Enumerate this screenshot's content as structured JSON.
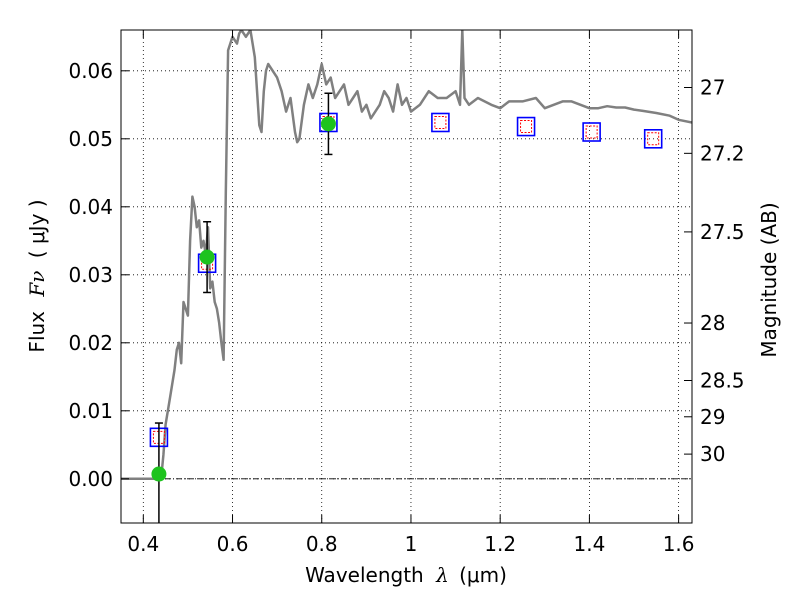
{
  "chart_data": {
    "type": "scatter",
    "title": "",
    "xlabel": {
      "prefix": "Wavelength",
      "symbol": "λ",
      "unit": "(μm)"
    },
    "ylabel": {
      "prefix": "Flux",
      "symbol": "Fν",
      "unit": "( μJy )"
    },
    "y2label": "Magnitude (AB)",
    "xlim": [
      0.35,
      1.63
    ],
    "ylim": [
      -0.0065,
      0.066
    ],
    "xticks": [
      {
        "value": 0.4,
        "label": "0.4"
      },
      {
        "value": 0.6,
        "label": "0.6"
      },
      {
        "value": 0.8,
        "label": "0.8"
      },
      {
        "value": 1.0,
        "label": "1"
      },
      {
        "value": 1.2,
        "label": "1.2"
      },
      {
        "value": 1.4,
        "label": "1.4"
      },
      {
        "value": 1.6,
        "label": "1.6"
      }
    ],
    "yticks": [
      {
        "value": 0.0,
        "label": "0.00"
      },
      {
        "value": 0.01,
        "label": "0.01"
      },
      {
        "value": 0.02,
        "label": "0.02"
      },
      {
        "value": 0.03,
        "label": "0.03"
      },
      {
        "value": 0.04,
        "label": "0.04"
      },
      {
        "value": 0.05,
        "label": "0.05"
      },
      {
        "value": 0.06,
        "label": "0.06"
      }
    ],
    "y2ticks": [
      {
        "value": 27.0,
        "label": "27"
      },
      {
        "value": 27.2,
        "label": "27.2"
      },
      {
        "value": 27.5,
        "label": "27.5"
      },
      {
        "value": 28.0,
        "label": "28"
      },
      {
        "value": 28.5,
        "label": "28.5"
      },
      {
        "value": 29.0,
        "label": "29"
      },
      {
        "value": 30.0,
        "label": "30"
      }
    ],
    "grid": true,
    "zero_line": true,
    "colors": {
      "model": "#808080",
      "observed": "#1ec31e",
      "model_band": "#0000ff",
      "model_band_inner": "#ff0000",
      "errorbar": "#000000"
    },
    "model_spectrum": {
      "x": [
        0.35,
        0.43,
        0.44,
        0.445,
        0.45,
        0.46,
        0.47,
        0.475,
        0.48,
        0.485,
        0.49,
        0.5,
        0.505,
        0.51,
        0.515,
        0.52,
        0.525,
        0.53,
        0.535,
        0.54,
        0.545,
        0.55,
        0.555,
        0.56,
        0.565,
        0.57,
        0.575,
        0.58,
        0.585,
        0.59,
        0.6,
        0.61,
        0.615,
        0.62,
        0.63,
        0.64,
        0.645,
        0.65,
        0.66,
        0.665,
        0.67,
        0.675,
        0.68,
        0.69,
        0.7,
        0.71,
        0.72,
        0.73,
        0.74,
        0.745,
        0.75,
        0.76,
        0.77,
        0.78,
        0.79,
        0.8,
        0.81,
        0.82,
        0.83,
        0.84,
        0.85,
        0.86,
        0.87,
        0.88,
        0.89,
        0.9,
        0.91,
        0.92,
        0.93,
        0.94,
        0.95,
        0.96,
        0.97,
        0.98,
        0.99,
        1.0,
        1.02,
        1.04,
        1.06,
        1.08,
        1.1,
        1.11,
        1.115,
        1.12,
        1.13,
        1.15,
        1.18,
        1.2,
        1.22,
        1.25,
        1.28,
        1.3,
        1.32,
        1.34,
        1.36,
        1.38,
        1.4,
        1.42,
        1.44,
        1.46,
        1.48,
        1.5,
        1.52,
        1.55,
        1.58,
        1.6,
        1.63
      ],
      "y": [
        0.0,
        0.0,
        0.0,
        0.0035,
        0.008,
        0.012,
        0.016,
        0.019,
        0.02,
        0.017,
        0.026,
        0.024,
        0.035,
        0.0415,
        0.04,
        0.037,
        0.038,
        0.034,
        0.035,
        0.033,
        0.037,
        0.028,
        0.029,
        0.026,
        0.025,
        0.023,
        0.02,
        0.0175,
        0.042,
        0.063,
        0.065,
        0.064,
        0.0655,
        0.066,
        0.065,
        0.066,
        0.064,
        0.062,
        0.052,
        0.051,
        0.057,
        0.06,
        0.061,
        0.06,
        0.059,
        0.057,
        0.054,
        0.056,
        0.051,
        0.0495,
        0.05,
        0.055,
        0.058,
        0.056,
        0.058,
        0.061,
        0.058,
        0.059,
        0.056,
        0.057,
        0.058,
        0.055,
        0.056,
        0.057,
        0.054,
        0.055,
        0.053,
        0.054,
        0.055,
        0.057,
        0.056,
        0.054,
        0.058,
        0.055,
        0.056,
        0.054,
        0.055,
        0.057,
        0.056,
        0.056,
        0.057,
        0.055,
        0.066,
        0.056,
        0.055,
        0.056,
        0.055,
        0.0545,
        0.0555,
        0.0555,
        0.056,
        0.0545,
        0.055,
        0.0555,
        0.0555,
        0.055,
        0.0545,
        0.0545,
        0.0548,
        0.0546,
        0.0546,
        0.0543,
        0.0541,
        0.0538,
        0.0534,
        0.0528,
        0.0524
      ]
    },
    "observed": {
      "x": [
        0.435,
        0.543,
        0.815
      ],
      "y": [
        0.0007,
        0.0326,
        0.0522
      ],
      "yerr": [
        0.0075,
        0.0052,
        0.0045
      ]
    },
    "model_photometry": {
      "x": [
        0.435,
        0.543,
        0.815,
        1.066,
        1.258,
        1.405,
        1.543
      ],
      "y": [
        0.0061,
        0.0317,
        0.0524,
        0.0524,
        0.0518,
        0.051,
        0.05
      ]
    }
  }
}
